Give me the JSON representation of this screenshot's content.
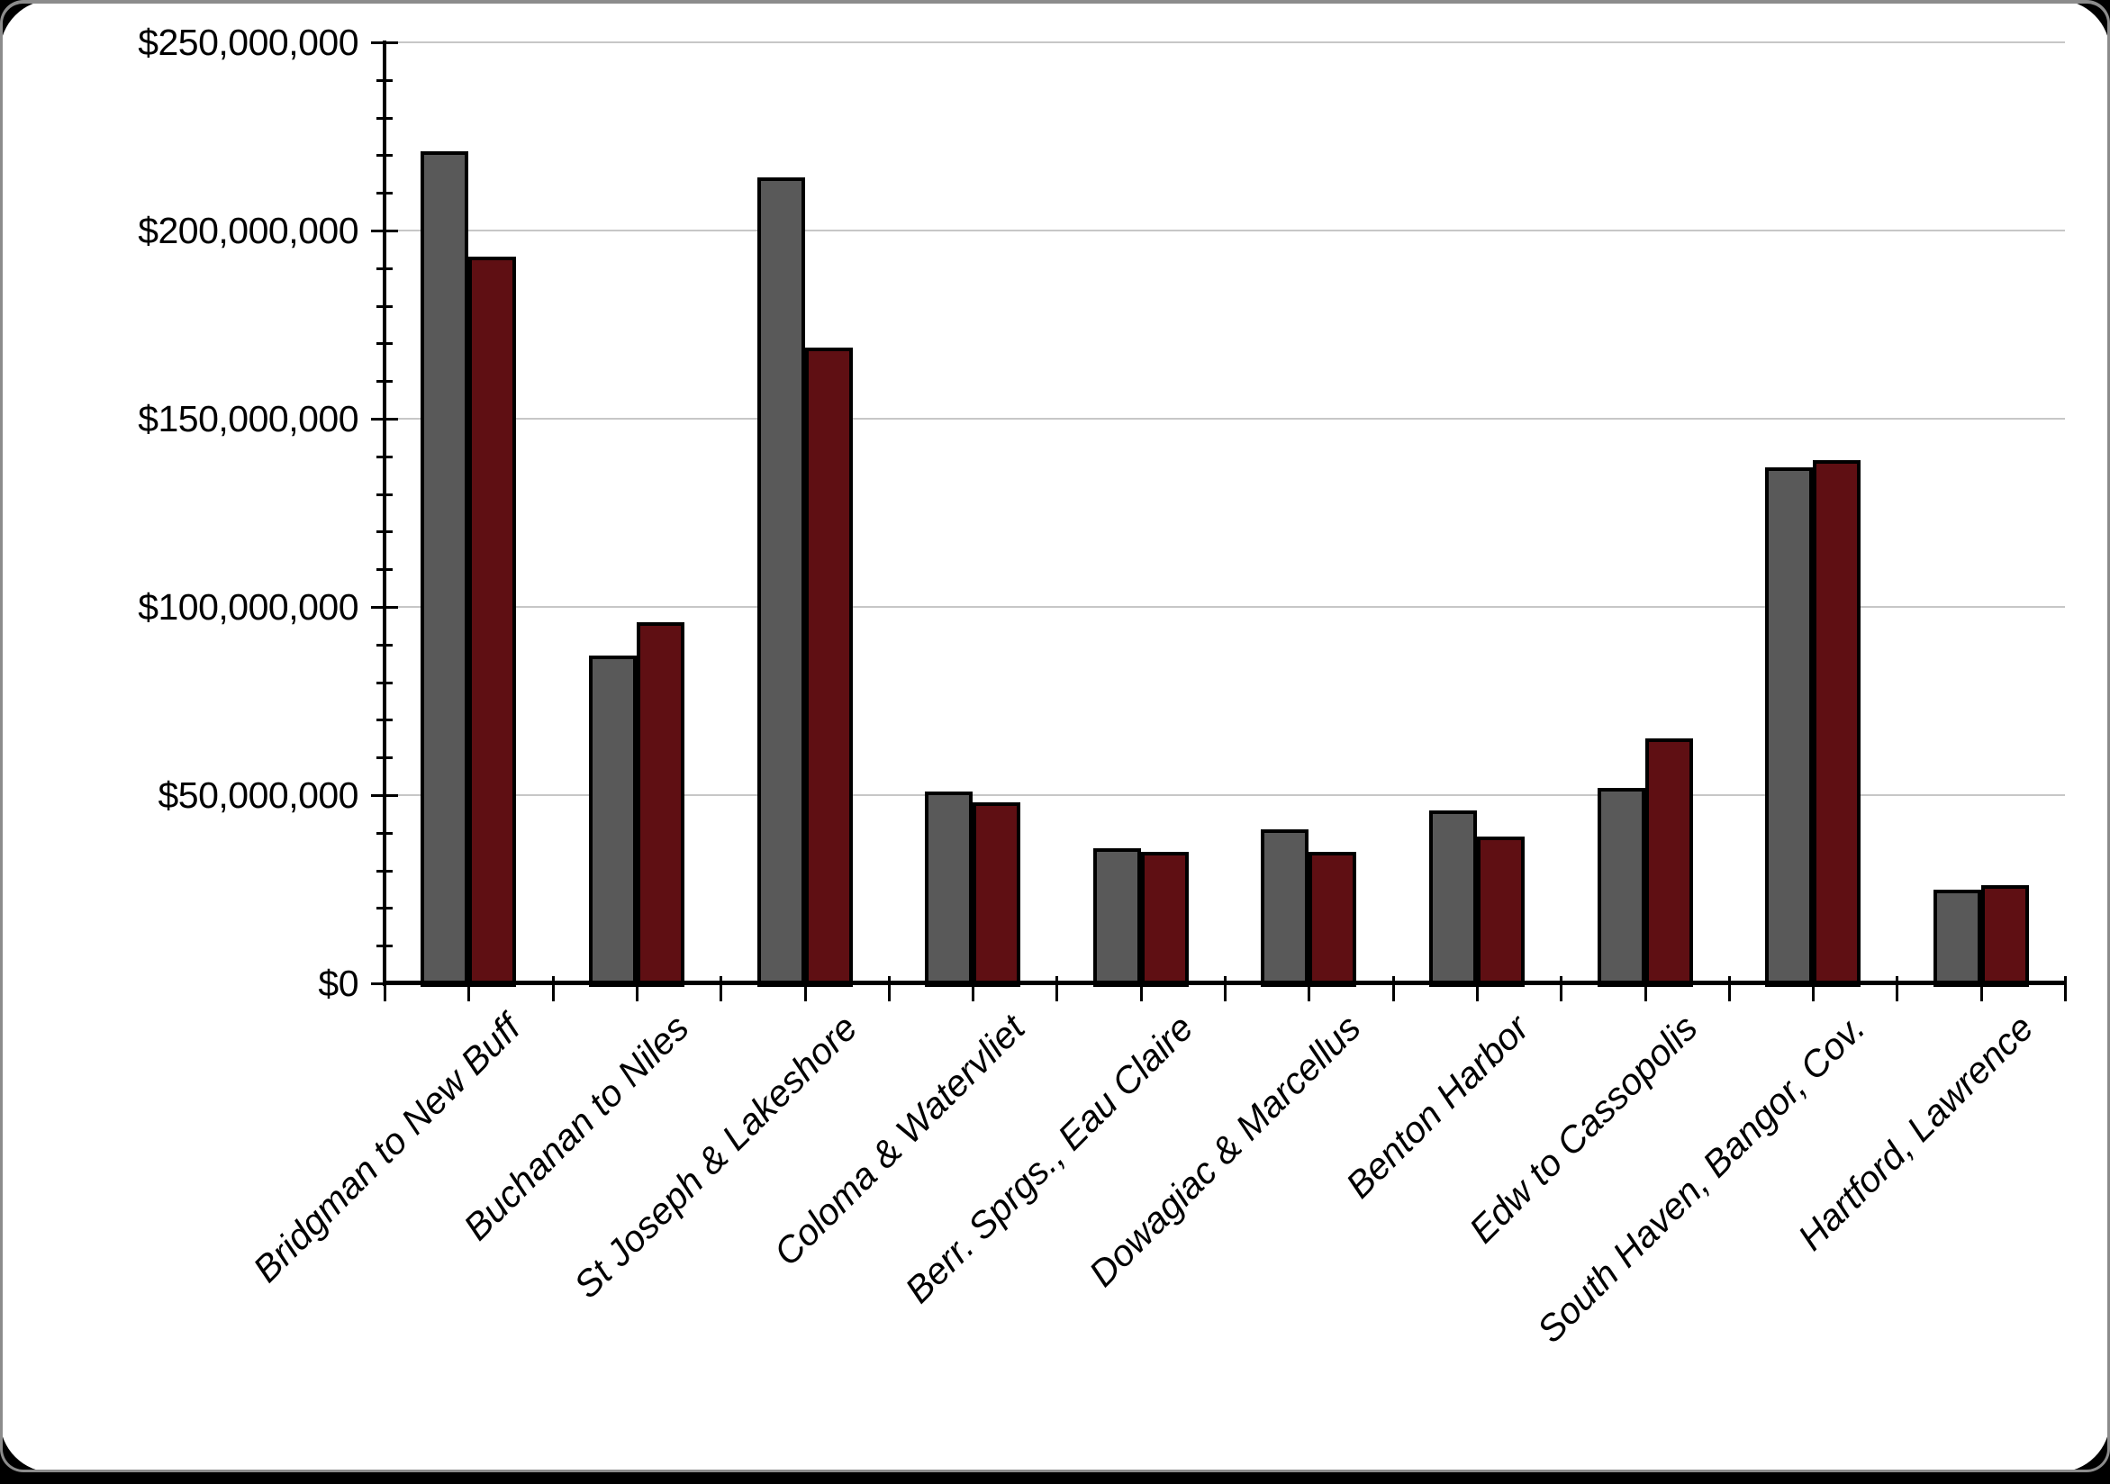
{
  "frame": {
    "background_color": "#000000",
    "card_color": "#ffffff",
    "edge_line_color": "#8c8c8c"
  },
  "chart_data": {
    "type": "bar",
    "title": "",
    "legend": "none",
    "grid": "horizontal",
    "gridline_color": "#c7c7c7",
    "bar_outline_color": "#000000",
    "categories": [
      "Bridgman to New Buff",
      "Buchanan to Niles",
      "St Joseph & Lakeshore",
      "Coloma & Watervliet",
      "Berr. Sprgs., Eau Claire",
      "Dowagiac & Marcellus",
      "Benton Harbor",
      "Edw to Cassopolis",
      "South Haven, Bangor, Cov.",
      "Hartford, Lawrence"
    ],
    "series": [
      {
        "name": "gray-series",
        "color": "#595959",
        "values": [
          221000000,
          87000000,
          214000000,
          51000000,
          36000000,
          41000000,
          46000000,
          52000000,
          137000000,
          25000000
        ]
      },
      {
        "name": "dark-red-series",
        "color": "#5f0f13",
        "values": [
          193000000,
          96000000,
          169000000,
          48000000,
          35000000,
          35000000,
          39000000,
          65000000,
          139000000,
          26000000
        ]
      }
    ],
    "y_axis": {
      "min": 0,
      "max": 250000000,
      "major_unit": 50000000,
      "minor_unit": 10000000,
      "tick_labels": [
        "$0",
        "$50,000,000",
        "$100,000,000",
        "$150,000,000",
        "$200,000,000",
        "$250,000,000"
      ]
    },
    "x_axis": {
      "label_rotation_deg": -45,
      "label_style": "italic"
    }
  }
}
